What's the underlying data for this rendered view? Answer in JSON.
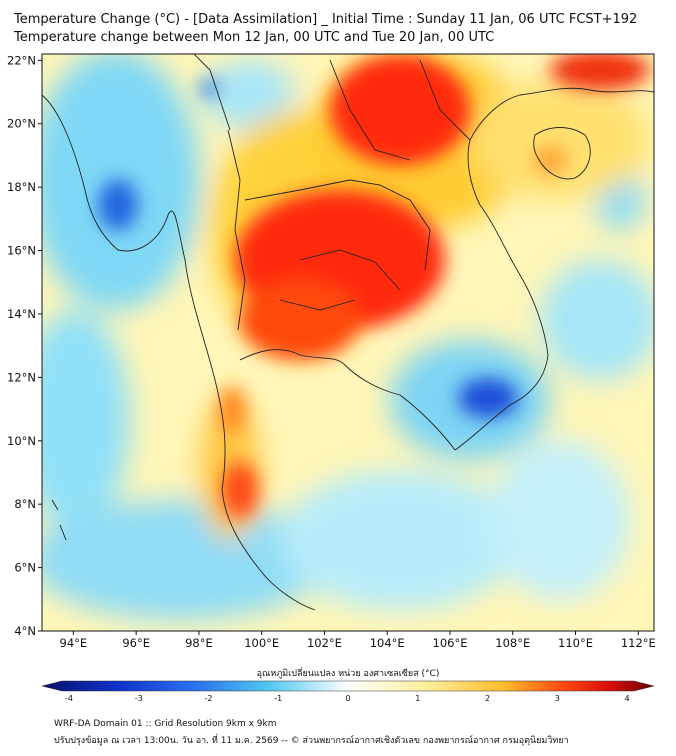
{
  "header": {
    "title_line1": "Temperature Change (°C) - [Data Assimilation] _ Initial Time : Sunday 11 Jan, 06 UTC FCST+192",
    "title_line2": "Temperature change between Mon 12 Jan, 00 UTC and Tue 20 Jan, 00 UTC"
  },
  "map": {
    "lon_range": [
      93,
      112.5
    ],
    "lat_range": [
      4,
      22.2
    ],
    "lon_ticks": [
      {
        "value": 94,
        "label": "94°E"
      },
      {
        "value": 96,
        "label": "96°E"
      },
      {
        "value": 98,
        "label": "98°E"
      },
      {
        "value": 100,
        "label": "100°E"
      },
      {
        "value": 102,
        "label": "102°E"
      },
      {
        "value": 104,
        "label": "104°E"
      },
      {
        "value": 106,
        "label": "106°E"
      },
      {
        "value": 108,
        "label": "108°E"
      },
      {
        "value": 110,
        "label": "110°E"
      },
      {
        "value": 112,
        "label": "112°E"
      }
    ],
    "lat_ticks": [
      {
        "value": 4,
        "label": "4°N"
      },
      {
        "value": 6,
        "label": "6°N"
      },
      {
        "value": 8,
        "label": "8°N"
      },
      {
        "value": 10,
        "label": "10°N"
      },
      {
        "value": 12,
        "label": "12°N"
      },
      {
        "value": 14,
        "label": "14°N"
      },
      {
        "value": 16,
        "label": "16°N"
      },
      {
        "value": 18,
        "label": "18°N"
      },
      {
        "value": 20,
        "label": "20°N"
      },
      {
        "value": 22,
        "label": "22°N"
      }
    ],
    "colors": {
      "strong_cool": "#1a55d6",
      "cool": "#55c8f0",
      "light_cool": "#aee8fa",
      "neutral": "#ffffff",
      "light_warm": "#fff4a0",
      "warm": "#ffd040",
      "hot": "#ff7a10",
      "very_hot": "#f01010"
    }
  },
  "colorbar": {
    "title": "อุณหภูมิเปลี่ยนแปลง หน่วย องศาเซลเซียส (°C)",
    "range": [
      -4,
      4
    ],
    "ticks": [
      {
        "value": -4,
        "label": "-4"
      },
      {
        "value": -3,
        "label": "-3"
      },
      {
        "value": -2,
        "label": "-2"
      },
      {
        "value": -1,
        "label": "-1"
      },
      {
        "value": 0,
        "label": "0"
      },
      {
        "value": 1,
        "label": "1"
      },
      {
        "value": 2,
        "label": "2"
      },
      {
        "value": 3,
        "label": "3"
      },
      {
        "value": 4,
        "label": "4"
      }
    ]
  },
  "footer": {
    "line1": "WRF-DA Domain 01 :: Grid Resolution 9km x 9km",
    "line2": "ปรับปรุงข้อมูล ณ เวลา 13:00น. วัน อา. ที่ 11 ม.ค. 2569 -- © ส่วนพยากรณ์อากาศเชิงตัวเลข กองพยากรณ์อากาศ กรมอุตุนิยมวิทยา"
  }
}
